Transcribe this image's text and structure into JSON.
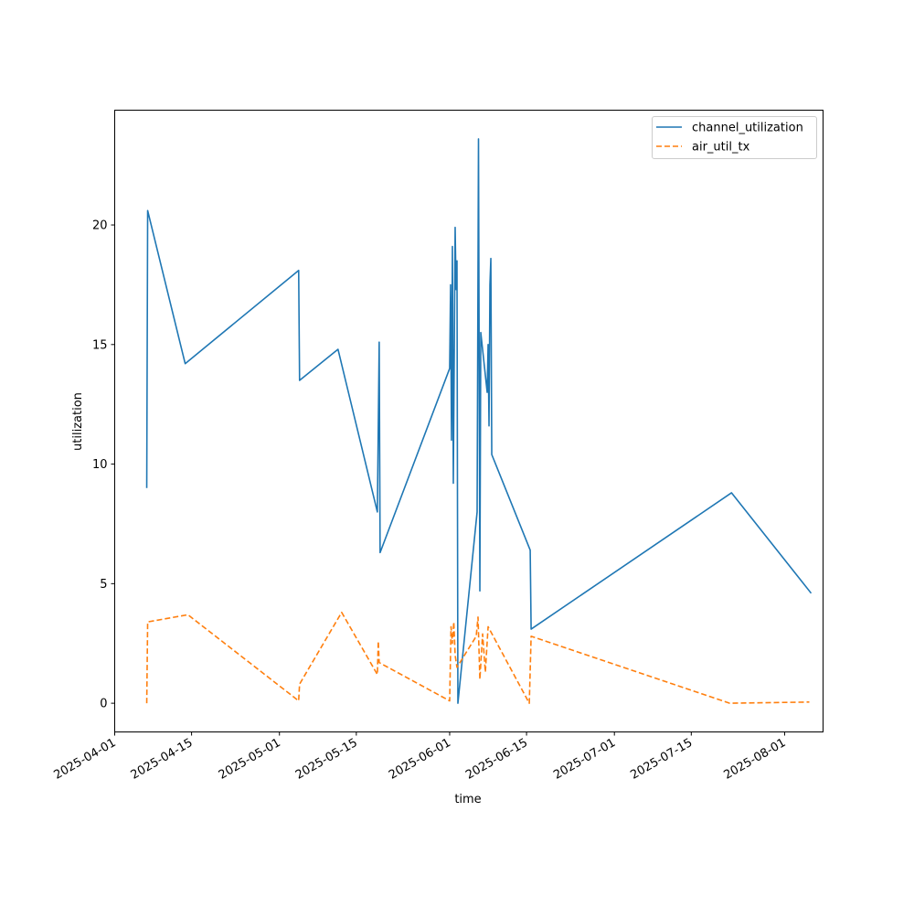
{
  "chart_data": {
    "type": "line",
    "title": "",
    "xlabel": "time",
    "ylabel": "utilization",
    "x_range": [
      "2025-04-01",
      "2025-08-08"
    ],
    "ylim": [
      -1.2,
      24.8
    ],
    "y_ticks": [
      0,
      5,
      10,
      15,
      20
    ],
    "x_ticks": [
      "2025-04-01",
      "2025-04-15",
      "2025-05-01",
      "2025-05-15",
      "2025-06-01",
      "2025-06-15",
      "2025-07-01",
      "2025-07-15",
      "2025-08-01"
    ],
    "grid": false,
    "legend": "upper right",
    "series": [
      {
        "name": "channel_utilization",
        "color": "#1f77b4",
        "style": "solid",
        "points": [
          [
            "2025-04-06 20:00",
            9.0
          ],
          [
            "2025-04-07 00:00",
            20.6
          ],
          [
            "2025-04-13 20:00",
            14.2
          ],
          [
            "2025-05-04 12:00",
            18.1
          ],
          [
            "2025-05-04 16:00",
            13.5
          ],
          [
            "2025-05-11 16:00",
            14.8
          ],
          [
            "2025-05-18 20:00",
            8.0
          ],
          [
            "2025-05-19 04:00",
            15.1
          ],
          [
            "2025-05-19 08:00",
            6.3
          ],
          [
            "2025-06-01 00:00",
            14.0
          ],
          [
            "2025-06-01 04:00",
            17.5
          ],
          [
            "2025-06-01 08:00",
            11.0
          ],
          [
            "2025-06-01 12:00",
            19.1
          ],
          [
            "2025-06-01 16:00",
            9.2
          ],
          [
            "2025-06-02 00:00",
            19.9
          ],
          [
            "2025-06-02 04:00",
            17.3
          ],
          [
            "2025-06-02 08:00",
            18.5
          ],
          [
            "2025-06-02 12:00",
            0.0
          ],
          [
            "2025-06-06 00:00",
            8.0
          ],
          [
            "2025-06-06 06:00",
            23.6
          ],
          [
            "2025-06-06 12:00",
            4.7
          ],
          [
            "2025-06-06 16:00",
            15.5
          ],
          [
            "2025-06-07 20:00",
            13.0
          ],
          [
            "2025-06-08 00:00",
            15.0
          ],
          [
            "2025-06-08 04:00",
            11.6
          ],
          [
            "2025-06-08 08:00",
            17.5
          ],
          [
            "2025-06-08 12:00",
            18.6
          ],
          [
            "2025-06-08 16:00",
            10.4
          ],
          [
            "2025-06-15 16:00",
            6.4
          ],
          [
            "2025-06-15 20:00",
            3.1
          ],
          [
            "2025-07-22 08:00",
            8.8
          ],
          [
            "2025-08-05 20:00",
            4.6
          ]
        ]
      },
      {
        "name": "air_util_tx",
        "color": "#ff7f0e",
        "style": "dashed",
        "points": [
          [
            "2025-04-06 20:00",
            0.0
          ],
          [
            "2025-04-07 00:00",
            3.4
          ],
          [
            "2025-04-14 08:00",
            3.7
          ],
          [
            "2025-05-04 12:00",
            0.1
          ],
          [
            "2025-05-04 16:00",
            0.8
          ],
          [
            "2025-05-12 08:00",
            3.8
          ],
          [
            "2025-05-18 20:00",
            1.2
          ],
          [
            "2025-05-19 00:00",
            2.6
          ],
          [
            "2025-05-19 04:00",
            1.7
          ],
          [
            "2025-06-01 00:00",
            0.1
          ],
          [
            "2025-06-01 06:00",
            3.2
          ],
          [
            "2025-06-01 12:00",
            2.5
          ],
          [
            "2025-06-01 18:00",
            3.4
          ],
          [
            "2025-06-02 00:00",
            2.0
          ],
          [
            "2025-06-02 08:00",
            1.5
          ],
          [
            "2025-06-05 20:00",
            2.8
          ],
          [
            "2025-06-06 04:00",
            3.6
          ],
          [
            "2025-06-06 12:00",
            1.0
          ],
          [
            "2025-06-07 00:00",
            2.9
          ],
          [
            "2025-06-07 12:00",
            1.3
          ],
          [
            "2025-06-08 00:00",
            3.2
          ],
          [
            "2025-06-15 12:00",
            0.0
          ],
          [
            "2025-06-15 20:00",
            2.8
          ],
          [
            "2025-07-22 00:00",
            0.0
          ],
          [
            "2025-08-05 12:00",
            0.05
          ]
        ]
      }
    ]
  }
}
